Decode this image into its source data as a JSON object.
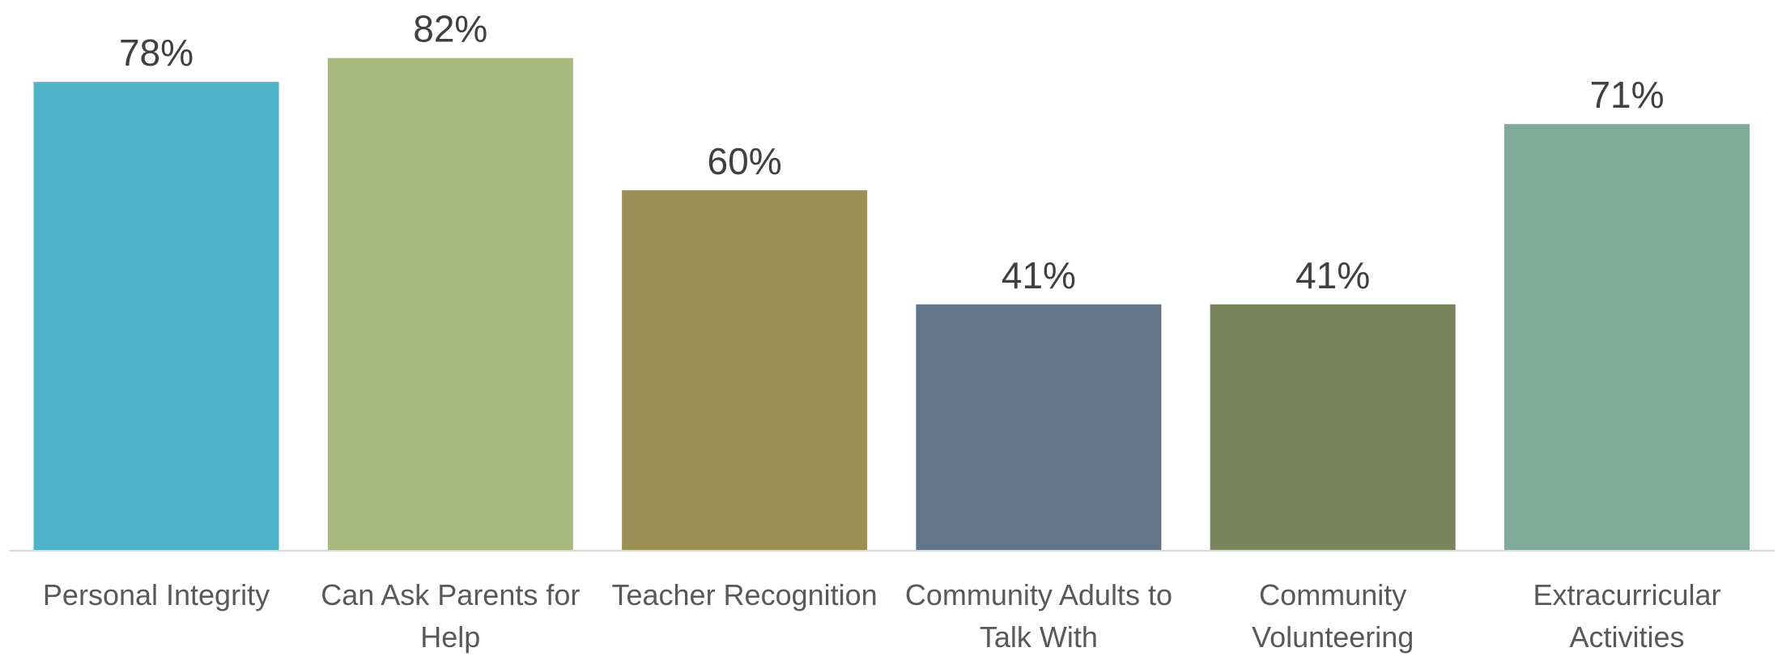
{
  "chart_data": {
    "type": "bar",
    "categories": [
      [
        "Personal Integrity"
      ],
      [
        "Can Ask Parents for",
        "Help"
      ],
      [
        "Teacher Recognition"
      ],
      [
        "Community Adults to",
        "Talk With"
      ],
      [
        "Community",
        "Volunteering"
      ],
      [
        "Extracurricular",
        "Activities"
      ]
    ],
    "values": [
      78,
      82,
      60,
      41,
      41,
      71
    ],
    "value_labels": [
      "78%",
      "82%",
      "60%",
      "41%",
      "41%",
      "71%"
    ],
    "colors": [
      "#4fb3c7",
      "#a7b97f",
      "#9b9157",
      "#657589",
      "#7b855d",
      "#82aa9a"
    ],
    "title": "",
    "xlabel": "",
    "ylabel": "",
    "grid": false,
    "legend": "none"
  }
}
